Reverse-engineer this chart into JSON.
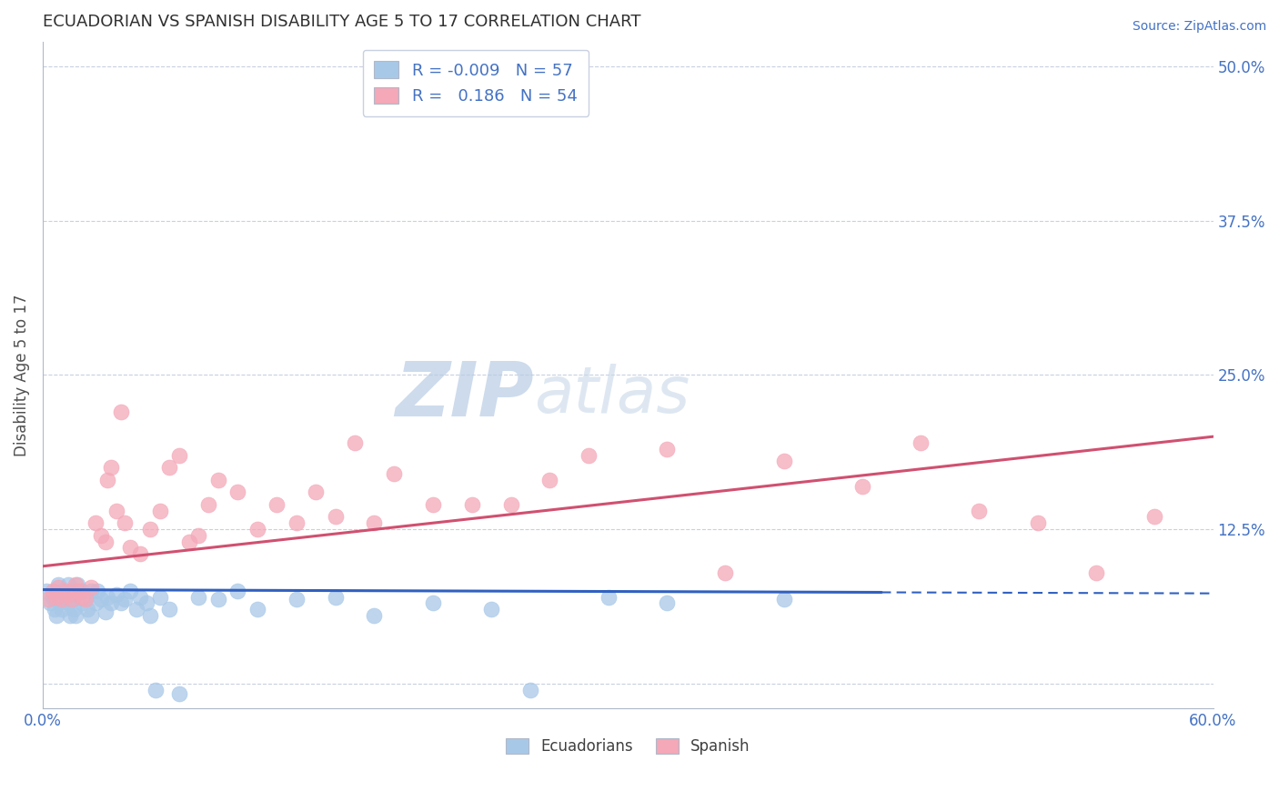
{
  "title": "ECUADORIAN VS SPANISH DISABILITY AGE 5 TO 17 CORRELATION CHART",
  "source": "Source: ZipAtlas.com",
  "ylabel": "Disability Age 5 to 17",
  "xlim": [
    0.0,
    0.6
  ],
  "ylim": [
    -0.02,
    0.52
  ],
  "ydata_lim": [
    0.0,
    0.5
  ],
  "xticks": [
    0.0,
    0.1,
    0.2,
    0.3,
    0.4,
    0.5,
    0.6
  ],
  "xticklabels": [
    "0.0%",
    "",
    "",
    "",
    "",
    "",
    "60.0%"
  ],
  "ytick_positions": [
    0.0,
    0.125,
    0.25,
    0.375,
    0.5
  ],
  "ytick_labels": [
    "",
    "12.5%",
    "25.0%",
    "37.5%",
    "50.0%"
  ],
  "legend_r_ecu": "-0.009",
  "legend_n_ecu": "57",
  "legend_r_spa": "0.186",
  "legend_n_spa": "54",
  "ecu_color": "#a8c8e8",
  "spa_color": "#f4a8b8",
  "ecu_line_color": "#3060c0",
  "spa_line_color": "#d05070",
  "title_color": "#303030",
  "axis_label_color": "#505050",
  "tick_color": "#4472c4",
  "grid_color": "#c8d0e0",
  "background_color": "#ffffff",
  "ecu_scatter_x": [
    0.002,
    0.004,
    0.005,
    0.006,
    0.007,
    0.008,
    0.008,
    0.009,
    0.01,
    0.01,
    0.012,
    0.013,
    0.013,
    0.014,
    0.015,
    0.015,
    0.016,
    0.017,
    0.018,
    0.018,
    0.02,
    0.02,
    0.022,
    0.023,
    0.025,
    0.025,
    0.027,
    0.028,
    0.03,
    0.032,
    0.033,
    0.035,
    0.038,
    0.04,
    0.042,
    0.045,
    0.048,
    0.05,
    0.053,
    0.055,
    0.058,
    0.06,
    0.065,
    0.07,
    0.08,
    0.09,
    0.1,
    0.11,
    0.13,
    0.15,
    0.17,
    0.2,
    0.23,
    0.25,
    0.29,
    0.32,
    0.38
  ],
  "ecu_scatter_y": [
    0.075,
    0.065,
    0.07,
    0.06,
    0.055,
    0.07,
    0.08,
    0.065,
    0.075,
    0.06,
    0.07,
    0.065,
    0.08,
    0.055,
    0.068,
    0.075,
    0.06,
    0.055,
    0.07,
    0.08,
    0.065,
    0.075,
    0.07,
    0.06,
    0.075,
    0.055,
    0.065,
    0.075,
    0.068,
    0.058,
    0.07,
    0.065,
    0.072,
    0.065,
    0.068,
    0.075,
    0.06,
    0.07,
    0.065,
    0.055,
    -0.005,
    0.07,
    0.06,
    -0.008,
    0.07,
    0.068,
    0.075,
    0.06,
    0.068,
    0.07,
    0.055,
    0.065,
    0.06,
    -0.005,
    0.07,
    0.065,
    0.068
  ],
  "spa_scatter_x": [
    0.003,
    0.005,
    0.007,
    0.008,
    0.01,
    0.012,
    0.013,
    0.015,
    0.017,
    0.018,
    0.02,
    0.022,
    0.025,
    0.027,
    0.03,
    0.032,
    0.033,
    0.035,
    0.038,
    0.04,
    0.042,
    0.045,
    0.05,
    0.055,
    0.06,
    0.065,
    0.07,
    0.075,
    0.08,
    0.085,
    0.09,
    0.1,
    0.11,
    0.12,
    0.13,
    0.14,
    0.15,
    0.16,
    0.17,
    0.18,
    0.2,
    0.22,
    0.24,
    0.26,
    0.28,
    0.32,
    0.35,
    0.38,
    0.42,
    0.45,
    0.48,
    0.51,
    0.54,
    0.57
  ],
  "spa_scatter_y": [
    0.068,
    0.075,
    0.07,
    0.078,
    0.068,
    0.075,
    0.072,
    0.068,
    0.08,
    0.075,
    0.07,
    0.068,
    0.078,
    0.13,
    0.12,
    0.115,
    0.165,
    0.175,
    0.14,
    0.22,
    0.13,
    0.11,
    0.105,
    0.125,
    0.14,
    0.175,
    0.185,
    0.115,
    0.12,
    0.145,
    0.165,
    0.155,
    0.125,
    0.145,
    0.13,
    0.155,
    0.135,
    0.195,
    0.13,
    0.17,
    0.145,
    0.145,
    0.145,
    0.165,
    0.185,
    0.19,
    0.09,
    0.18,
    0.16,
    0.195,
    0.14,
    0.13,
    0.09,
    0.135
  ],
  "watermark_text": "ZIPatlas",
  "watermark_color": "#c8d8f0",
  "watermark_fontsize": 60
}
